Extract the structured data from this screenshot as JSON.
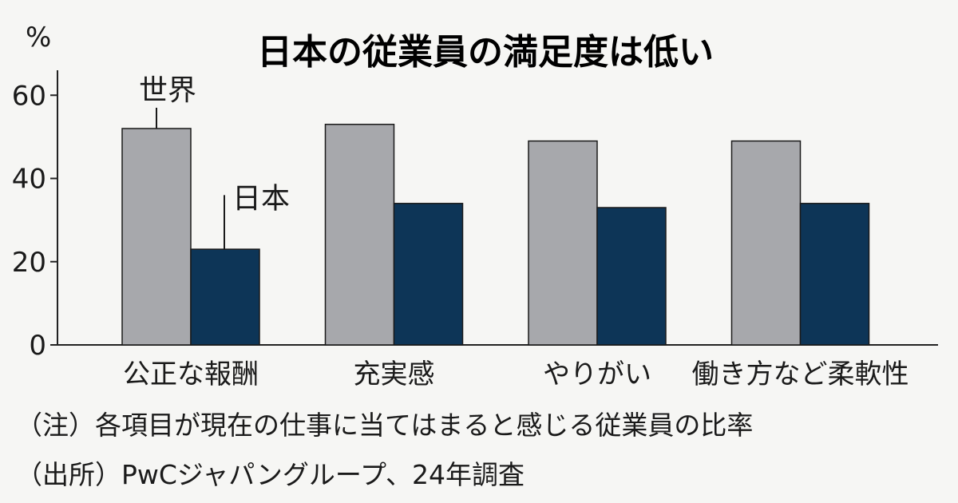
{
  "chart_data": {
    "type": "bar",
    "title": "日本の従業員の満足度は低い",
    "unit": "%",
    "categories": [
      "公正な報酬",
      "充実感",
      "やりがい",
      "働き方など柔軟性"
    ],
    "series": [
      {
        "name": "世界",
        "values": [
          52,
          53,
          49,
          49
        ],
        "color": "#a7a8ac"
      },
      {
        "name": "日本",
        "values": [
          23,
          34,
          33,
          34
        ],
        "color": "#0d3557"
      }
    ],
    "yticks": [
      0,
      20,
      40,
      60
    ],
    "ylim": [
      0,
      66
    ],
    "grid": false
  },
  "notes": {
    "note": "（注）各項目が現在の仕事に当てはまると感じる従業員の比率",
    "source": "（出所）PwCジャパングループ、24年調査"
  }
}
